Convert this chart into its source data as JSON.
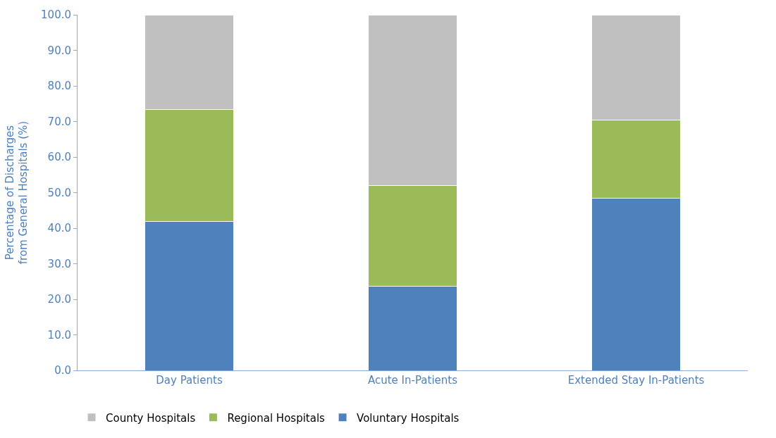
{
  "chart_data": {
    "type": "bar",
    "stacked": true,
    "ylabel": "Percentage of Discharges\nfrom General Hospitals (%)",
    "categories": [
      "Day Patients",
      "Acute In-Patients",
      "Extended Stay In-Patients"
    ],
    "series": [
      {
        "name": "Voluntary Hospitals",
        "color": "#4f81bd",
        "values": [
          41.8,
          23.7,
          48.4
        ]
      },
      {
        "name": "Regional Hospitals",
        "color": "#9bbb59",
        "values": [
          31.5,
          28.3,
          21.9
        ]
      },
      {
        "name": "County Hospitals",
        "color": "#c0c0c0",
        "values": [
          26.7,
          48.0,
          29.7
        ]
      }
    ],
    "ylim": [
      0,
      100
    ],
    "yticks": [
      {
        "value": 0,
        "label": "0.0"
      },
      {
        "value": 10,
        "label": "10.0"
      },
      {
        "value": 20,
        "label": "20.0"
      },
      {
        "value": 30,
        "label": "30.0"
      },
      {
        "value": 40,
        "label": "40.0"
      },
      {
        "value": 50,
        "label": "50.0"
      },
      {
        "value": 60,
        "label": "60.0"
      },
      {
        "value": 70,
        "label": "70.0"
      },
      {
        "value": 80,
        "label": "80.0"
      },
      {
        "value": 90,
        "label": "90.0"
      },
      {
        "value": 100,
        "label": "100.0"
      }
    ],
    "grid": false,
    "legend": "bottom left"
  }
}
